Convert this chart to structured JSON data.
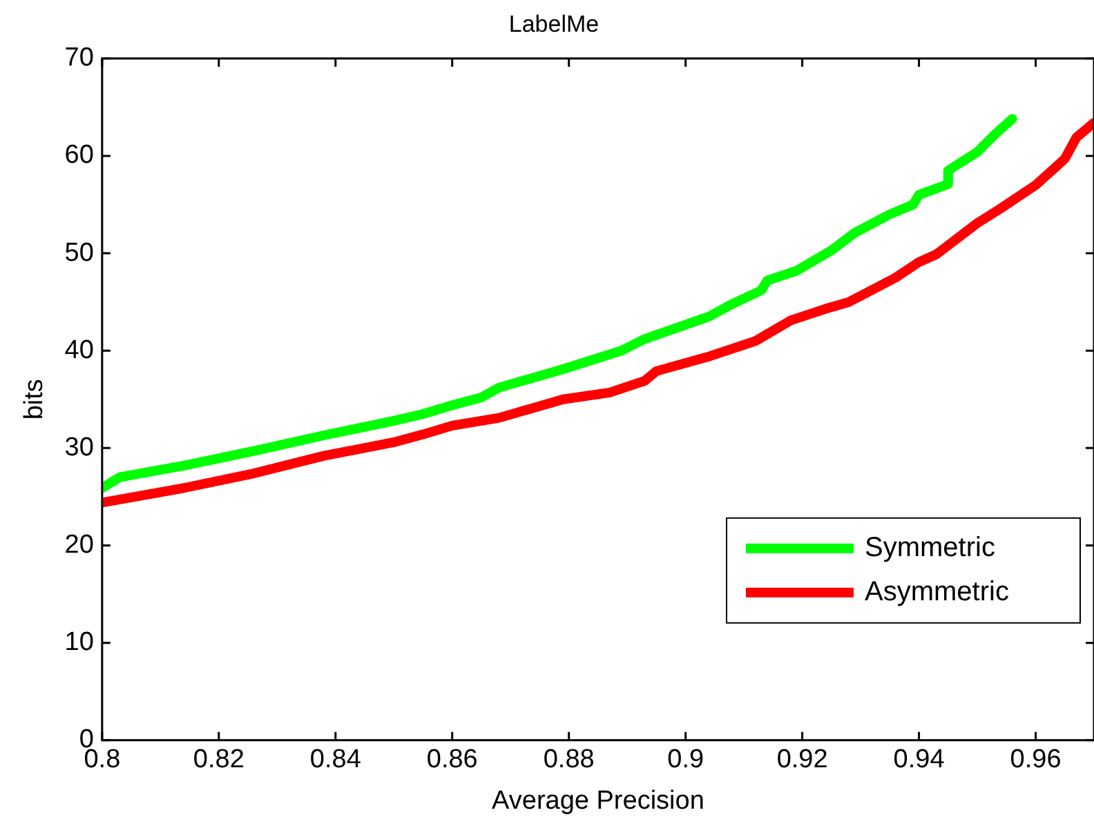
{
  "chart_data": {
    "type": "line",
    "title": "LabelMe",
    "xlabel": "Average Precision",
    "ylabel": "bits",
    "xlim": [
      0.8,
      0.97
    ],
    "xticks": [
      0.8,
      0.82,
      0.84,
      0.86,
      0.88,
      0.9,
      0.92,
      0.94,
      0.96
    ],
    "ylim": [
      0,
      70
    ],
    "yticks": [
      0,
      10,
      20,
      30,
      40,
      50,
      60,
      70
    ],
    "grid": false,
    "legend": "bottom right",
    "marker": "none",
    "line_style": "solid",
    "series": [
      {
        "name": "Symmetric",
        "color": "#00ff00",
        "x": [
          0.8,
          0.803,
          0.814,
          0.826,
          0.838,
          0.85,
          0.855,
          0.86,
          0.865,
          0.868,
          0.879,
          0.889,
          0.893,
          0.904,
          0.908,
          0.913,
          0.914,
          0.919,
          0.925,
          0.929,
          0.935,
          0.939,
          0.94,
          0.945,
          0.945,
          0.95,
          0.953,
          0.956
        ],
        "values": [
          25.9,
          27,
          28.2,
          29.7,
          31.3,
          32.8,
          33.5,
          34.4,
          35.2,
          36.2,
          38.1,
          40,
          41.2,
          43.5,
          44.8,
          46.2,
          47.2,
          48.2,
          50.3,
          52.1,
          54,
          55,
          56,
          57.1,
          58.5,
          60.4,
          62.2,
          63.8
        ]
      },
      {
        "name": "Asymmetric",
        "color": "#ff0000",
        "x": [
          0.8,
          0.814,
          0.826,
          0.838,
          0.85,
          0.855,
          0.86,
          0.868,
          0.879,
          0.887,
          0.893,
          0.895,
          0.904,
          0.912,
          0.918,
          0.924,
          0.928,
          0.936,
          0.94,
          0.943,
          0.95,
          0.954,
          0.96,
          0.965,
          0.967,
          0.97
        ],
        "values": [
          24.4,
          25.9,
          27.4,
          29.2,
          30.6,
          31.4,
          32.3,
          33.1,
          35,
          35.7,
          36.9,
          37.9,
          39.4,
          41,
          43.1,
          44.3,
          45,
          47.5,
          49.1,
          49.9,
          53.1,
          54.6,
          57,
          59.7,
          61.9,
          63.4
        ]
      }
    ]
  }
}
